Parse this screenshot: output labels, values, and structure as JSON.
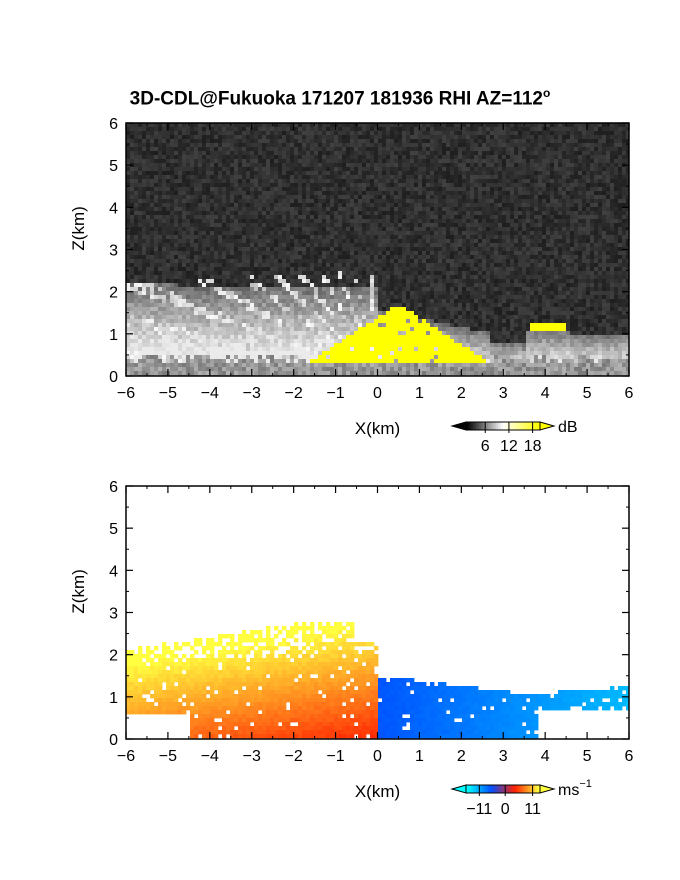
{
  "title": {
    "main": "3D-CDL@Fukuoka 171207 181936 RHI AZ=112",
    "superscript": "o"
  },
  "chart_data": [
    {
      "type": "heatmap",
      "name": "reflectivity-panel",
      "xlabel": "X(km)",
      "ylabel": "Z(km)",
      "xlim": [
        -6,
        6
      ],
      "ylim": [
        0,
        6
      ],
      "xticks": [
        "−6",
        "−5",
        "−4",
        "−3",
        "−2",
        "−1",
        "0",
        "1",
        "2",
        "3",
        "4",
        "5",
        "6"
      ],
      "yticks": [
        "0",
        "1",
        "2",
        "3",
        "4",
        "5",
        "6"
      ],
      "background": "#262626",
      "colorbar": {
        "unit": "dB",
        "tick_labels": [
          "6",
          "12",
          "18"
        ],
        "colors": [
          "#000000",
          "#ffffff",
          "#ffff00"
        ]
      },
      "features": {
        "clutter_layer_top_km": [
          0.3,
          0.6
        ],
        "yellow_region_x_km": [
          -1.7,
          2.7
        ],
        "yellow_region_z_km": [
          0.3,
          1.7
        ]
      }
    },
    {
      "type": "heatmap",
      "name": "velocity-panel",
      "xlabel": "X(km)",
      "ylabel": "Z(km)",
      "xlim": [
        -6,
        6
      ],
      "ylim": [
        0,
        6
      ],
      "xticks": [
        "−6",
        "−5",
        "−4",
        "−3",
        "−2",
        "−1",
        "0",
        "1",
        "2",
        "3",
        "4",
        "5",
        "6"
      ],
      "yticks": [
        "0",
        "1",
        "2",
        "3",
        "4",
        "5",
        "6"
      ],
      "background": "#ffffff",
      "colorbar": {
        "unit": "ms",
        "unit_exponent": "−1",
        "tick_labels": [
          "−11",
          "0",
          "11"
        ],
        "colors": [
          "#00ffff",
          "#0050ff",
          "#ff2000",
          "#ffff40"
        ]
      },
      "features": {
        "left_side_sign": "positive",
        "right_side_sign": "negative",
        "echo_top_left_km": 2.8,
        "echo_top_right_km": 1.5
      }
    }
  ]
}
